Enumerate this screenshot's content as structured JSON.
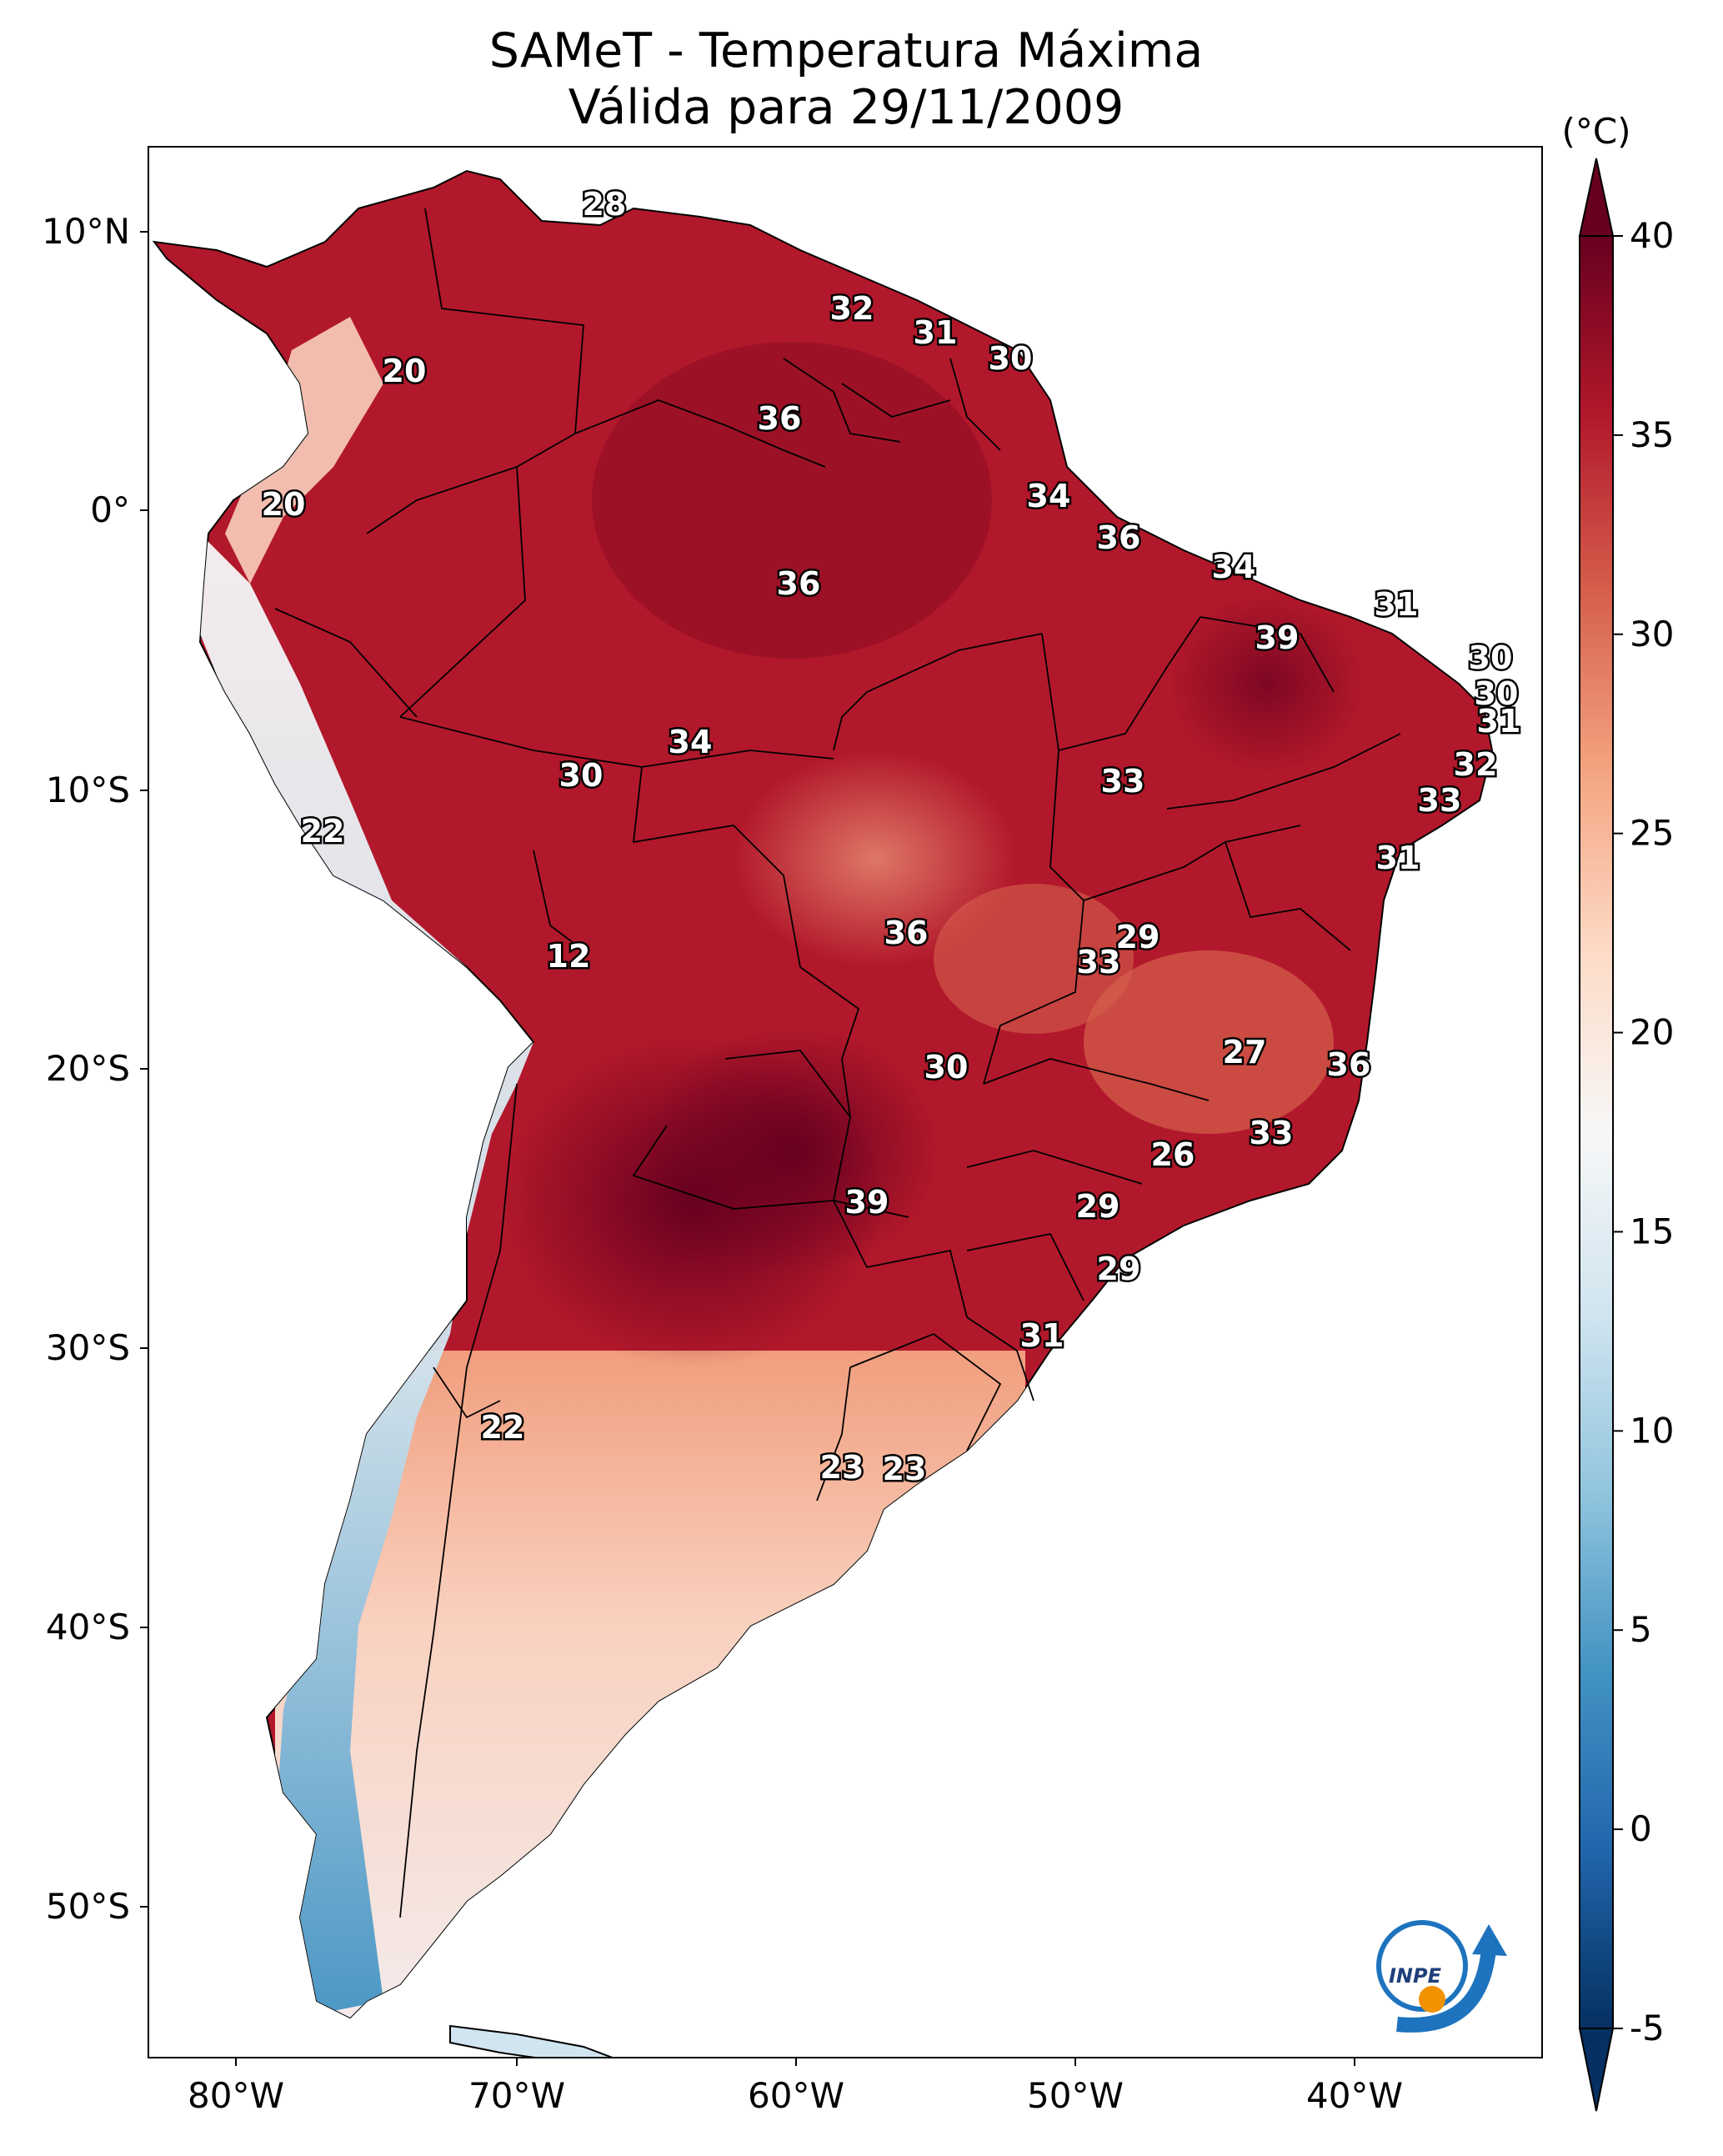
{
  "title_line1": "SAMeT - Temperatura Máxima",
  "title_line2": "Válida para 29/11/2009",
  "colorbar": {
    "unit": "(°C)",
    "min": -5,
    "max": 40,
    "ticks": [
      "40",
      "35",
      "30",
      "25",
      "20",
      "15",
      "10",
      "5",
      "0",
      "-5"
    ],
    "colors": [
      "#053061",
      "#2166ac",
      "#4393c3",
      "#92c5de",
      "#d1e5f0",
      "#f7f7f7",
      "#fddbc7",
      "#f4a582",
      "#d6604d",
      "#b2182b",
      "#67001f"
    ]
  },
  "axes": {
    "lon_ticks": [
      "80°W",
      "70°W",
      "60°W",
      "50°W",
      "40°W"
    ],
    "lat_ticks": [
      "10°N",
      "0°",
      "10°S",
      "20°S",
      "30°S",
      "40°S",
      "50°S"
    ]
  },
  "contour_labels": [
    "28",
    "20",
    "32",
    "31",
    "30",
    "36",
    "20",
    "34",
    "36",
    "36",
    "34",
    "31",
    "39",
    "30",
    "30",
    "31",
    "34",
    "30",
    "33",
    "32",
    "33",
    "22",
    "31",
    "36",
    "29",
    "12",
    "33",
    "27",
    "36",
    "30",
    "33",
    "26",
    "39",
    "29",
    "29",
    "31",
    "22",
    "23",
    "23"
  ],
  "logo": {
    "text": "INPE",
    "icon": "inpe-logo-icon"
  }
}
